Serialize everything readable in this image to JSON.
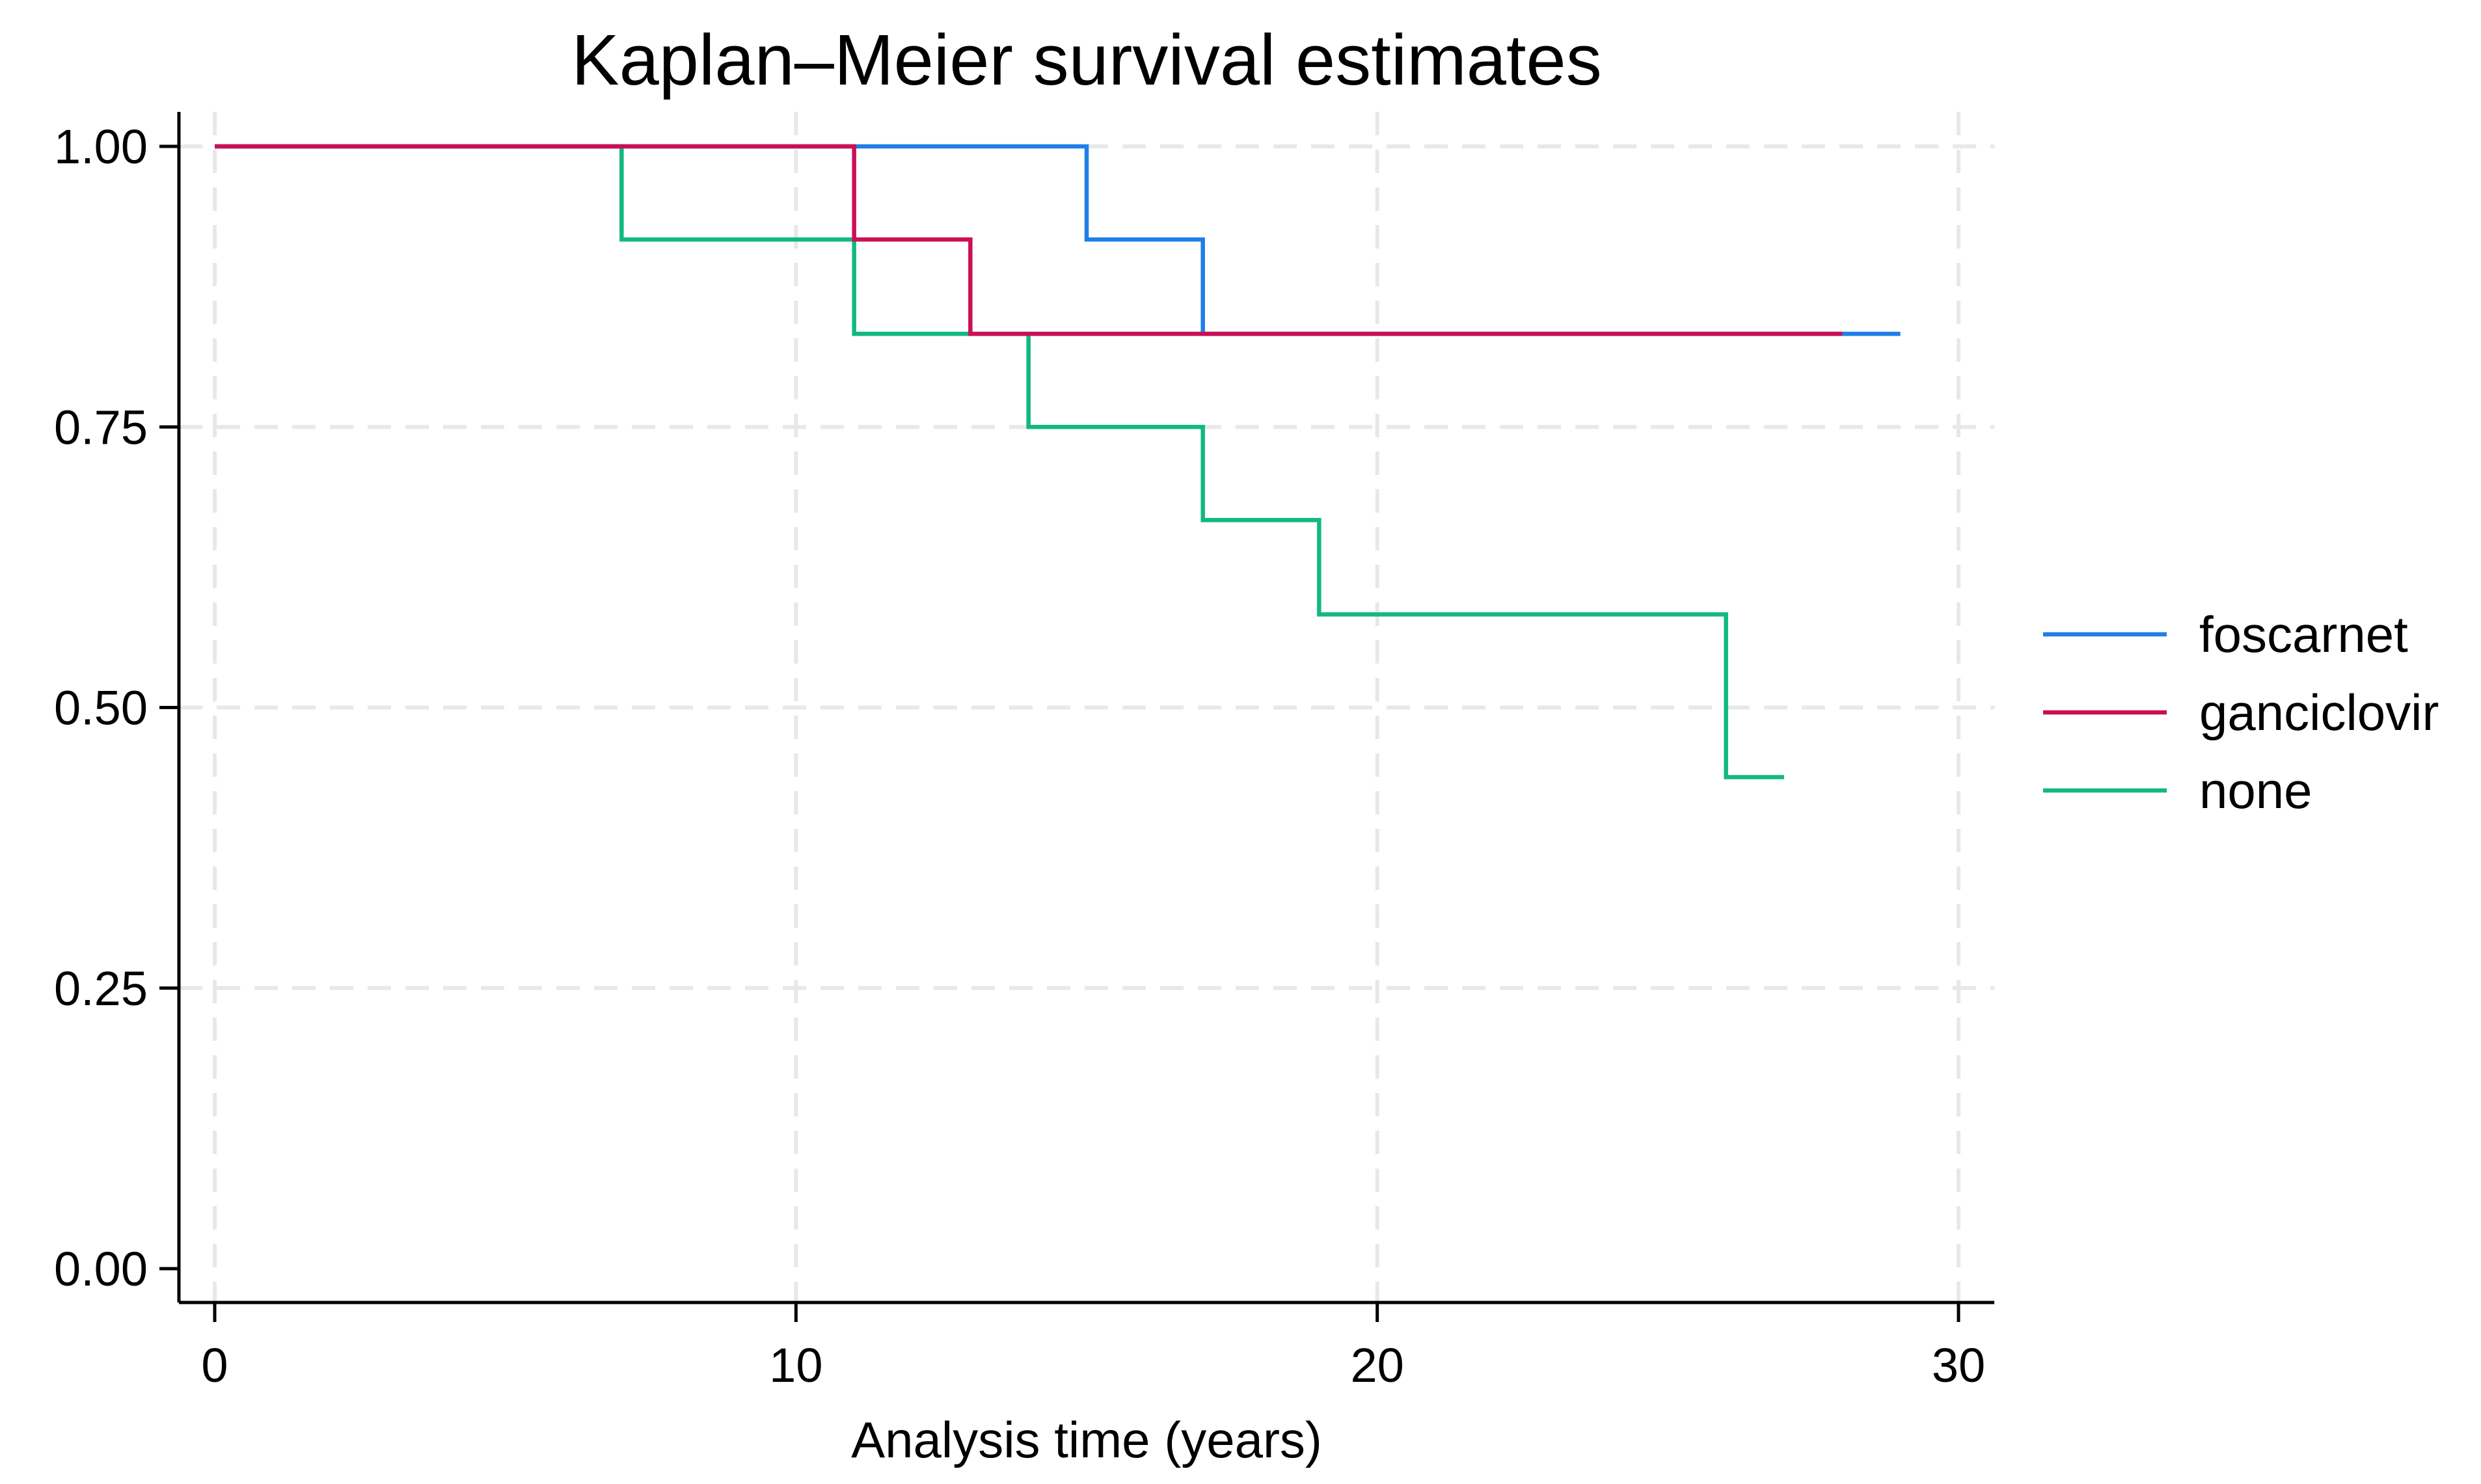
{
  "chart_data": {
    "type": "line",
    "subtype": "kaplan-meier-step",
    "title": "Kaplan–Meier survival estimates",
    "xlabel": "Analysis time (years)",
    "ylabel": "",
    "xlim": [
      0,
      30
    ],
    "ylim": [
      0,
      1
    ],
    "x_ticks": [
      0,
      10,
      20,
      30
    ],
    "x_tick_labels": [
      "0",
      "10",
      "20",
      "30"
    ],
    "y_ticks": [
      0,
      0.25,
      0.5,
      0.75,
      1
    ],
    "y_tick_labels": [
      "0.00",
      "0.25",
      "0.50",
      "0.75",
      "1.00"
    ],
    "grid": true,
    "legend_position": "right",
    "series": [
      {
        "name": "foscarnet",
        "color": "#1f7fe6",
        "points": [
          [
            0,
            1.0
          ],
          [
            15,
            0.917
          ],
          [
            17,
            0.833
          ],
          [
            29,
            0.833
          ]
        ]
      },
      {
        "name": "ganciclovir",
        "color": "#cc0f55",
        "points": [
          [
            0,
            1.0
          ],
          [
            11,
            0.917
          ],
          [
            13,
            0.833
          ],
          [
            28,
            0.833
          ]
        ]
      },
      {
        "name": "none",
        "color": "#12b883",
        "points": [
          [
            0,
            1.0
          ],
          [
            7,
            0.917
          ],
          [
            11,
            0.833
          ],
          [
            14,
            0.75
          ],
          [
            17,
            0.667
          ],
          [
            19,
            0.583
          ],
          [
            26,
            0.438
          ],
          [
            27,
            0.438
          ]
        ]
      }
    ]
  }
}
